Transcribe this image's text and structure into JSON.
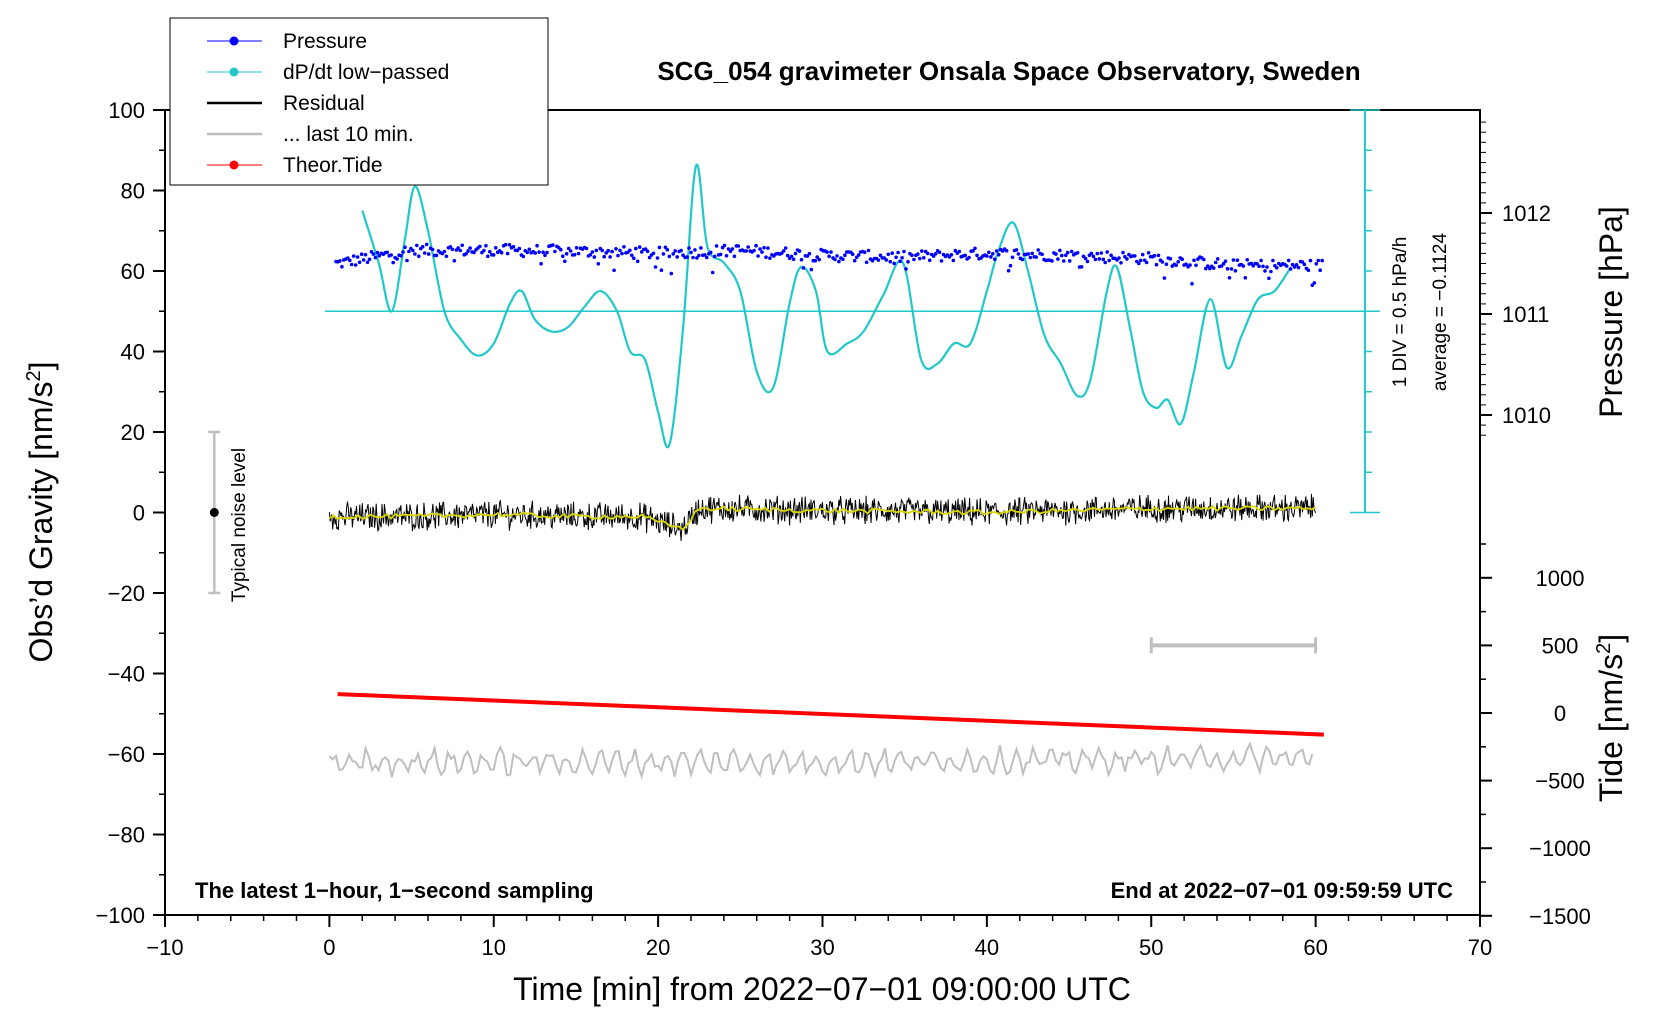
{
  "chart_data": {
    "type": "line",
    "title": "SCG_054 gravimeter Onsala Space Observatory, Sweden",
    "xlabel": "Time [min] from 2022−07−01 09:00:00 UTC",
    "ylabel_left": "Obs’d Gravity [nm/s",
    "ylabel_left_sup": "2",
    "ylabel_left_end": "]",
    "ylabel_pressure": "Pressure [hPa]",
    "ylabel_tide": "Tide [nm/s",
    "ylabel_tide_sup": "2",
    "ylabel_tide_end": "]",
    "xlim": [
      -10,
      70
    ],
    "ylim": [
      -100,
      100
    ],
    "x_ticks": [
      "−10",
      "0",
      "10",
      "20",
      "30",
      "40",
      "50",
      "60",
      "70"
    ],
    "y_ticks": [
      "100",
      "80",
      "60",
      "40",
      "20",
      "0",
      "−20",
      "−40",
      "−60",
      "−80",
      "−100"
    ],
    "pressure_ticks": [
      "1012",
      "1011",
      "1010"
    ],
    "tide_ticks": [
      "1000",
      "500",
      "0",
      "−500",
      "−1000",
      "−1500"
    ],
    "legend": [
      {
        "label": "Pressure",
        "color": "#0000ff",
        "marker": true
      },
      {
        "label": "dP/dt low−passed",
        "color": "#20c8c8",
        "marker": true
      },
      {
        "label": "Residual",
        "color": "#000000",
        "marker": false
      },
      {
        "label": "... last 10 min.",
        "color": "#bfbfbf",
        "marker": false
      },
      {
        "label": "Theor.Tide",
        "color": "#ff0000",
        "marker": true
      }
    ],
    "annotations": {
      "noise_label": "Typical noise level",
      "div_label": "1 DIV = 0.5 hPa/h",
      "average_label": "average = −0.1124",
      "footer_left": "The latest 1−hour, 1−second sampling",
      "footer_right": "End at 2022−07−01 09:59:59 UTC"
    },
    "colors": {
      "pressure": "#0000ff",
      "dpdt": "#20c8c8",
      "residual": "#000000",
      "residual_smooth": "#d8d800",
      "last10": "#bfbfbf",
      "tide": "#ff0000"
    },
    "series": [
      {
        "name": "dP/dt low-passed",
        "x": [
          2,
          3,
          3.8,
          4.6,
          5.2,
          6,
          7,
          8,
          9,
          10,
          11,
          11.7,
          12.5,
          13.5,
          14.5,
          15.5,
          16.5,
          17.5,
          18.3,
          19.2,
          20,
          20.7,
          21.5,
          22.3,
          23,
          24,
          25,
          26,
          27,
          28,
          28.7,
          29.6,
          30.3,
          31.5,
          32.5,
          33.7,
          34.9,
          36,
          37,
          38,
          39,
          40,
          40.7,
          41.6,
          42.5,
          43.5,
          44.5,
          45.5,
          46.3,
          47.3,
          47.9,
          48.7,
          49.5,
          50.3,
          51,
          51.8,
          52.6,
          53.6,
          54.6,
          55.5,
          56.5,
          57.5,
          58.5
        ],
        "y": [
          75,
          62,
          50,
          68,
          81,
          70,
          50,
          43,
          39,
          42,
          52,
          55,
          48,
          45,
          46,
          51,
          55,
          50,
          40,
          38,
          25,
          17,
          45,
          86,
          66,
          62,
          55,
          35,
          31,
          52,
          61,
          55,
          40,
          42,
          45,
          54,
          62,
          38,
          37,
          42,
          42,
          55,
          65,
          72,
          60,
          44,
          37,
          29,
          33,
          55,
          61,
          46,
          30,
          26,
          28,
          22,
          35,
          53,
          36,
          44,
          53,
          55,
          61
        ]
      },
      {
        "name": "Pressure",
        "units": "hPa",
        "x": [
          0.5,
          5,
          10,
          15,
          20,
          25,
          30,
          35,
          40,
          45,
          50,
          55,
          60
        ],
        "y": [
          1011.5,
          1011.63,
          1011.63,
          1011.62,
          1011.6,
          1011.63,
          1011.58,
          1011.56,
          1011.6,
          1011.58,
          1011.55,
          1011.48,
          1011.48
        ]
      },
      {
        "name": "Residual",
        "x": [
          0,
          5,
          10,
          15,
          19,
          20.5,
          21.5,
          22.5,
          30,
          40,
          50,
          60
        ],
        "y": [
          -1,
          -1,
          -0.5,
          -1,
          -1,
          -3,
          -4,
          1,
          0.5,
          0,
          1,
          1
        ]
      },
      {
        "name": "... last 10 min.",
        "x": [
          0,
          30,
          60
        ],
        "y": [
          -62,
          -62,
          -61
        ]
      },
      {
        "name": "Theor.Tide",
        "units": "nm/s^2",
        "x": [
          0.5,
          60.5
        ],
        "y": [
          140,
          -160
        ]
      }
    ],
    "noise_bar": {
      "x": -7,
      "center": 0,
      "low": -20,
      "high": 20
    },
    "last10_bar": {
      "x_start": 50,
      "x_end": 60,
      "y": -33
    },
    "dpdt_reference_y": 50,
    "dpdt_scale": {
      "x": 63,
      "y_min": 0,
      "y_max": 100,
      "minor_step": 10
    }
  }
}
